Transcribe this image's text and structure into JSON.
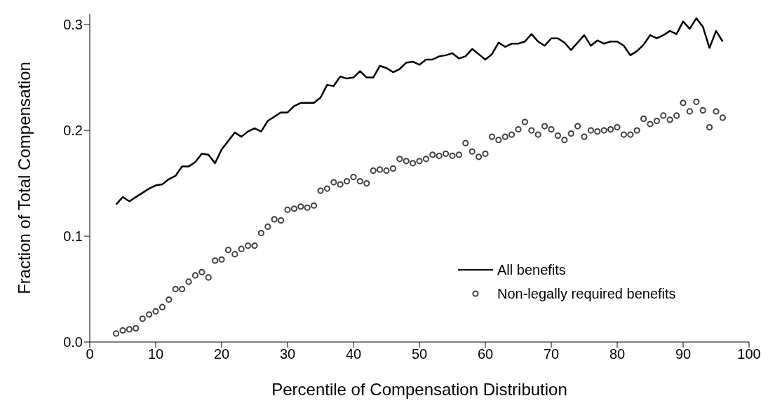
{
  "chart_data": {
    "type": "line",
    "xlabel": "Percentile of Compensation Distribution",
    "ylabel": "Fraction of Total Compensation",
    "x": [
      4,
      5,
      6,
      7,
      8,
      9,
      10,
      11,
      12,
      13,
      14,
      15,
      16,
      17,
      18,
      19,
      20,
      21,
      22,
      23,
      24,
      25,
      26,
      27,
      28,
      29,
      30,
      31,
      32,
      33,
      34,
      35,
      36,
      37,
      38,
      39,
      40,
      41,
      42,
      43,
      44,
      45,
      46,
      47,
      48,
      49,
      50,
      51,
      52,
      53,
      54,
      55,
      56,
      57,
      58,
      59,
      60,
      61,
      62,
      63,
      64,
      65,
      66,
      67,
      68,
      69,
      70,
      71,
      72,
      73,
      74,
      75,
      76,
      77,
      78,
      79,
      80,
      81,
      82,
      83,
      84,
      85,
      86,
      87,
      88,
      89,
      90,
      91,
      92,
      93,
      94,
      95,
      96
    ],
    "series": [
      {
        "name": "All benefits",
        "color": "#000000",
        "marker": "none",
        "line_style": "solid",
        "values": [
          0.13,
          0.137,
          0.133,
          0.137,
          0.141,
          0.145,
          0.148,
          0.149,
          0.154,
          0.157,
          0.166,
          0.166,
          0.17,
          0.178,
          0.177,
          0.169,
          0.182,
          0.19,
          0.198,
          0.194,
          0.199,
          0.202,
          0.199,
          0.209,
          0.213,
          0.217,
          0.217,
          0.223,
          0.226,
          0.226,
          0.226,
          0.231,
          0.243,
          0.242,
          0.251,
          0.249,
          0.25,
          0.256,
          0.25,
          0.25,
          0.261,
          0.259,
          0.255,
          0.258,
          0.264,
          0.265,
          0.262,
          0.267,
          0.267,
          0.27,
          0.271,
          0.273,
          0.268,
          0.27,
          0.277,
          0.272,
          0.267,
          0.272,
          0.283,
          0.279,
          0.282,
          0.282,
          0.284,
          0.291,
          0.284,
          0.28,
          0.287,
          0.287,
          0.283,
          0.276,
          0.283,
          0.29,
          0.28,
          0.285,
          0.282,
          0.284,
          0.284,
          0.28,
          0.271,
          0.275,
          0.281,
          0.29,
          0.287,
          0.29,
          0.294,
          0.291,
          0.303,
          0.296,
          0.306,
          0.298,
          0.278,
          0.294,
          0.284
        ]
      },
      {
        "name": "Non-legally required benefits",
        "type": "scatter",
        "color": "#404040",
        "marker": "circle",
        "values": [
          0.008,
          0.011,
          0.012,
          0.013,
          0.022,
          0.026,
          0.029,
          0.033,
          0.04,
          0.05,
          0.05,
          0.057,
          0.063,
          0.066,
          0.061,
          0.077,
          0.078,
          0.087,
          0.083,
          0.088,
          0.091,
          0.091,
          0.103,
          0.109,
          0.116,
          0.115,
          0.125,
          0.126,
          0.128,
          0.127,
          0.129,
          0.143,
          0.145,
          0.151,
          0.149,
          0.152,
          0.156,
          0.152,
          0.15,
          0.162,
          0.163,
          0.162,
          0.164,
          0.173,
          0.171,
          0.169,
          0.171,
          0.173,
          0.177,
          0.176,
          0.178,
          0.176,
          0.177,
          0.188,
          0.18,
          0.175,
          0.178,
          0.194,
          0.191,
          0.194,
          0.196,
          0.201,
          0.208,
          0.2,
          0.196,
          0.204,
          0.201,
          0.195,
          0.191,
          0.197,
          0.204,
          0.194,
          0.2,
          0.199,
          0.2,
          0.201,
          0.203,
          0.196,
          0.196,
          0.2,
          0.211,
          0.206,
          0.209,
          0.214,
          0.21,
          0.214,
          0.226,
          0.218,
          0.227,
          0.219,
          0.203,
          0.218,
          0.212
        ]
      }
    ],
    "xlim": [
      0,
      100
    ],
    "xticks": [
      0,
      10,
      20,
      30,
      40,
      50,
      60,
      70,
      80,
      90,
      100
    ],
    "ylim": [
      0,
      0.31
    ],
    "yticks": [
      {
        "value": 0,
        "label": "0.0"
      },
      {
        "value": 0.1,
        "label": "0.1"
      },
      {
        "value": 0.2,
        "label": "0.2"
      },
      {
        "value": 0.3,
        "label": "0.3"
      }
    ],
    "grid": false,
    "legend": "bottom right"
  }
}
